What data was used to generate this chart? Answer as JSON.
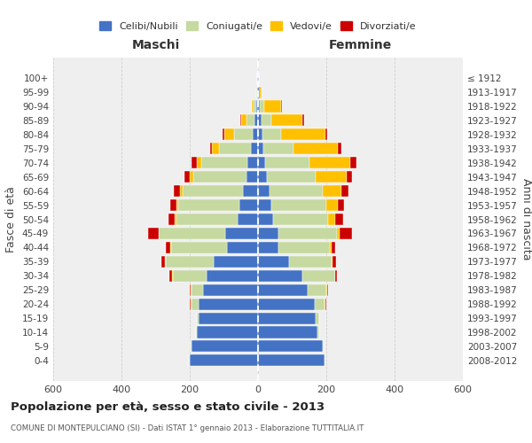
{
  "age_groups": [
    "0-4",
    "5-9",
    "10-14",
    "15-19",
    "20-24",
    "25-29",
    "30-34",
    "35-39",
    "40-44",
    "45-49",
    "50-54",
    "55-59",
    "60-64",
    "65-69",
    "70-74",
    "75-79",
    "80-84",
    "85-89",
    "90-94",
    "95-99",
    "100+"
  ],
  "birth_years": [
    "2008-2012",
    "2003-2007",
    "1998-2002",
    "1993-1997",
    "1988-1992",
    "1983-1987",
    "1978-1982",
    "1973-1977",
    "1968-1972",
    "1963-1967",
    "1958-1962",
    "1953-1957",
    "1948-1952",
    "1943-1947",
    "1938-1942",
    "1933-1937",
    "1928-1932",
    "1923-1927",
    "1918-1922",
    "1913-1917",
    "≤ 1912"
  ],
  "maschi": {
    "celibi": [
      200,
      195,
      180,
      175,
      175,
      160,
      150,
      130,
      90,
      95,
      60,
      55,
      45,
      35,
      30,
      20,
      15,
      10,
      5,
      3,
      2
    ],
    "coniugati": [
      2,
      2,
      2,
      5,
      20,
      35,
      100,
      140,
      165,
      195,
      180,
      180,
      175,
      155,
      135,
      95,
      55,
      25,
      8,
      2,
      0
    ],
    "vedovi": [
      0,
      0,
      0,
      0,
      2,
      2,
      2,
      2,
      2,
      2,
      4,
      5,
      8,
      10,
      15,
      20,
      30,
      15,
      5,
      0,
      0
    ],
    "divorziati": [
      0,
      0,
      0,
      0,
      2,
      2,
      8,
      10,
      12,
      30,
      18,
      18,
      20,
      15,
      15,
      5,
      5,
      2,
      0,
      0,
      0
    ]
  },
  "femmine": {
    "nubili": [
      195,
      190,
      175,
      170,
      165,
      145,
      130,
      90,
      60,
      60,
      45,
      40,
      35,
      25,
      20,
      15,
      12,
      10,
      5,
      4,
      2
    ],
    "coniugate": [
      2,
      2,
      5,
      10,
      30,
      55,
      95,
      125,
      150,
      170,
      160,
      160,
      155,
      145,
      130,
      90,
      55,
      30,
      12,
      2,
      0
    ],
    "vedove": [
      0,
      0,
      0,
      0,
      2,
      2,
      2,
      3,
      5,
      10,
      20,
      35,
      55,
      90,
      120,
      130,
      130,
      90,
      50,
      5,
      0
    ],
    "divorziate": [
      0,
      0,
      0,
      0,
      2,
      2,
      5,
      10,
      12,
      35,
      25,
      18,
      20,
      15,
      18,
      10,
      5,
      5,
      2,
      0,
      0
    ]
  },
  "colors": {
    "celibi": "#4472c4",
    "coniugati": "#c5d9a0",
    "vedovi": "#ffc000",
    "divorziati": "#cc0000"
  },
  "legend_labels": [
    "Celibi/Nubili",
    "Coniugati/e",
    "Vedovi/e",
    "Divorziati/e"
  ],
  "title": "Popolazione per età, sesso e stato civile - 2013",
  "subtitle": "COMUNE DI MONTEPULCIANO (SI) - Dati ISTAT 1° gennaio 2013 - Elaborazione TUTTITALIA.IT",
  "xlabel_left": "Maschi",
  "xlabel_right": "Femmine",
  "ylabel_left": "Fasce di età",
  "ylabel_right": "Anni di nascita",
  "xlim": 600,
  "bg_color": "#ffffff",
  "plot_bg_color": "#efefef",
  "grid_color": "#cccccc"
}
